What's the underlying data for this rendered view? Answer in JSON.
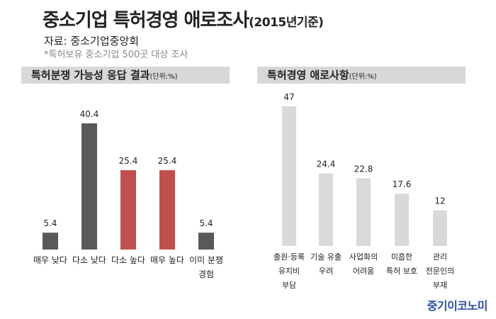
{
  "header": {
    "title": "중소기업 특허경영 애로조사",
    "title_paren": "(2015년기준)",
    "source": "자료: 중소기업중앙회",
    "note": "*특허보유 중소기업 500곳 대상 조사"
  },
  "brand": "중기이코노미",
  "colors": {
    "dark": "#595959",
    "red": "#c0504d",
    "light": "#d9d9d9"
  },
  "chart_data": [
    {
      "type": "bar",
      "title": "특허분쟁 가능성 응답 결과",
      "unit": "(단위:%)",
      "categories": [
        [
          "매우 낮다"
        ],
        [
          "다소 낮다"
        ],
        [
          "다소 높다"
        ],
        [
          "매우 높다"
        ],
        [
          "이미 분쟁",
          "경험"
        ]
      ],
      "values": [
        5.4,
        40.4,
        25.4,
        25.4,
        5.4
      ],
      "value_labels": [
        "5.4",
        "40.4",
        "25.4",
        "25.4",
        "5.4"
      ],
      "bar_colors": [
        "dark",
        "dark",
        "red",
        "red",
        "dark"
      ],
      "ylim": [
        0,
        40.4
      ]
    },
    {
      "type": "bar",
      "title": "특허경영 애로사항",
      "unit": "(단위:%)",
      "categories": [
        [
          "출원·등록",
          "유지비",
          "부담"
        ],
        [
          "기술 유출",
          "우려"
        ],
        [
          "사업화의",
          "어려움"
        ],
        [
          "미흡한",
          "특허 보호"
        ],
        [
          "관리",
          "전문인의",
          "부재"
        ]
      ],
      "values": [
        47,
        24.4,
        22.8,
        17.6,
        12
      ],
      "value_labels": [
        "47",
        "24.4",
        "22.8",
        "17.6",
        "12"
      ],
      "bar_colors": [
        "light",
        "light",
        "light",
        "light",
        "light"
      ],
      "ylim": [
        0,
        47
      ]
    }
  ]
}
